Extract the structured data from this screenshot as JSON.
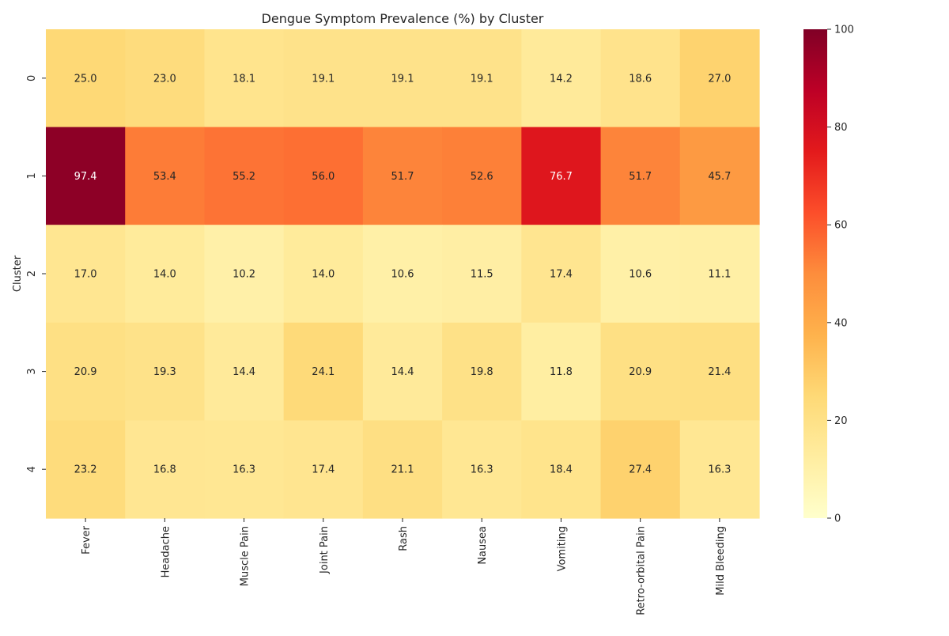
{
  "chart_data": {
    "type": "heatmap",
    "title": "Dengue Symptom Prevalence (%) by Cluster",
    "xlabel": "",
    "ylabel": "Cluster",
    "x_categories": [
      "Fever",
      "Headache",
      "Muscle Pain",
      "Joint Pain",
      "Rash",
      "Nausea",
      "Vomiting",
      "Retro-orbital Pain",
      "Mild Bleeding"
    ],
    "y_categories": [
      "0",
      "1",
      "2",
      "3",
      "4"
    ],
    "values": [
      [
        25.0,
        23.0,
        18.1,
        19.1,
        19.1,
        19.1,
        14.2,
        18.6,
        27.0
      ],
      [
        97.4,
        53.4,
        55.2,
        56.0,
        51.7,
        52.6,
        76.7,
        51.7,
        45.7
      ],
      [
        17.0,
        14.0,
        10.2,
        14.0,
        10.6,
        11.5,
        17.4,
        10.6,
        11.1
      ],
      [
        20.9,
        19.3,
        14.4,
        24.1,
        14.4,
        19.8,
        11.8,
        20.9,
        21.4
      ],
      [
        23.2,
        16.8,
        16.3,
        17.4,
        21.1,
        16.3,
        18.4,
        27.4,
        16.3
      ]
    ],
    "value_format": "0.1f",
    "colormap": "YlOrRd",
    "colorbar": {
      "range": [
        0,
        100
      ],
      "ticks": [
        "0",
        "20",
        "40",
        "60",
        "80",
        "100"
      ]
    },
    "grid": false
  }
}
